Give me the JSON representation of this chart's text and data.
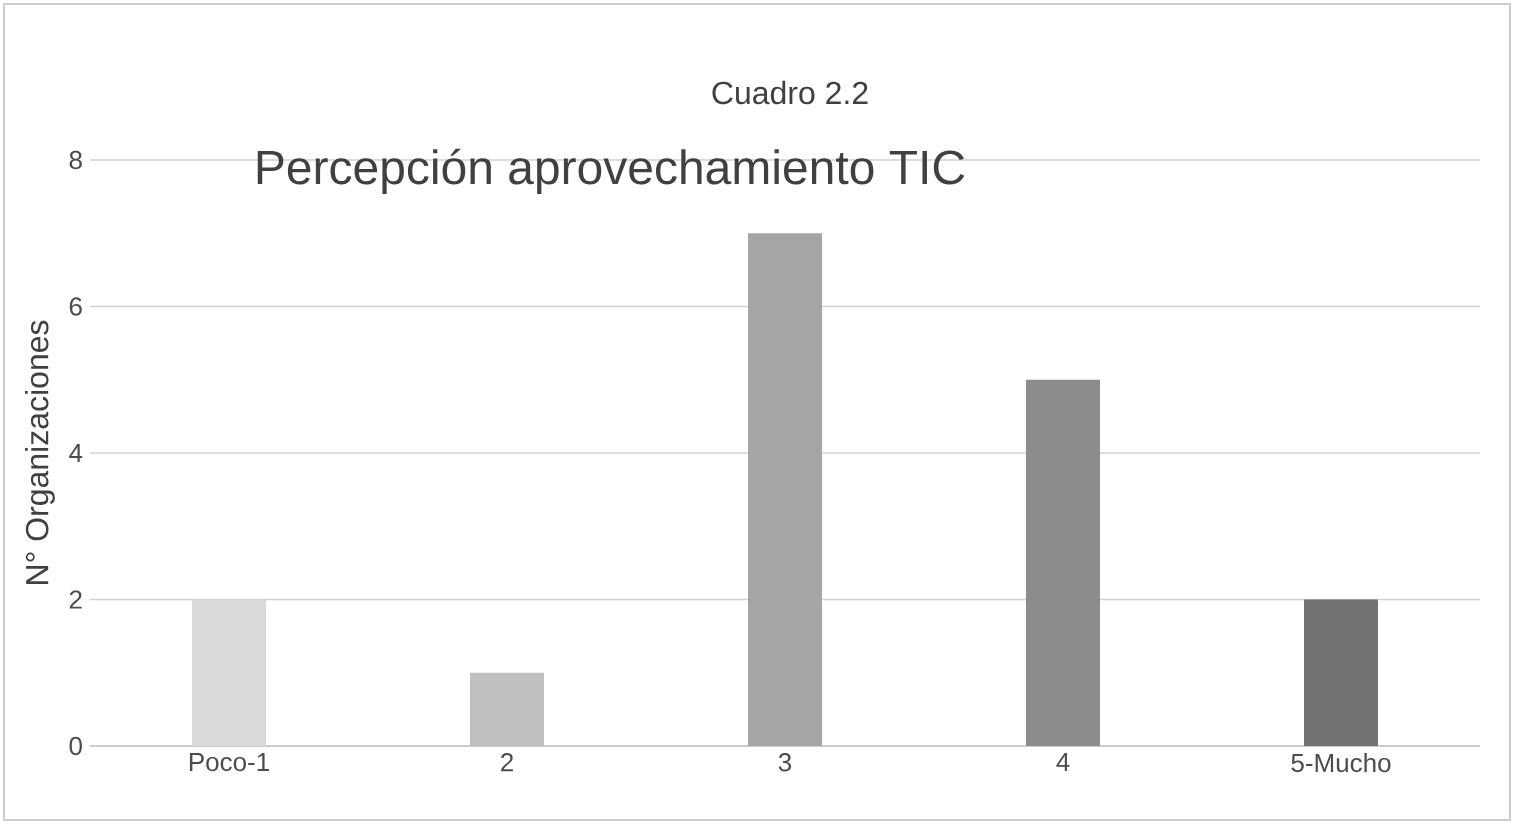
{
  "chart_data": {
    "type": "bar",
    "title": "Cuadro 2.2",
    "subtitle": "Percepción aprovechamiento TIC",
    "ylabel": "N° Organizaciones",
    "categories": [
      "Poco-1",
      "2",
      "3",
      "4",
      "5-Mucho"
    ],
    "values": [
      2,
      1,
      7,
      5,
      2
    ],
    "colors": [
      "#d9d9d9",
      "#bfbfbf",
      "#a5a5a5",
      "#8c8c8c",
      "#737373"
    ],
    "ylim": [
      0,
      8
    ],
    "yticks": [
      0,
      2,
      4,
      6,
      8
    ],
    "grid": "y"
  }
}
